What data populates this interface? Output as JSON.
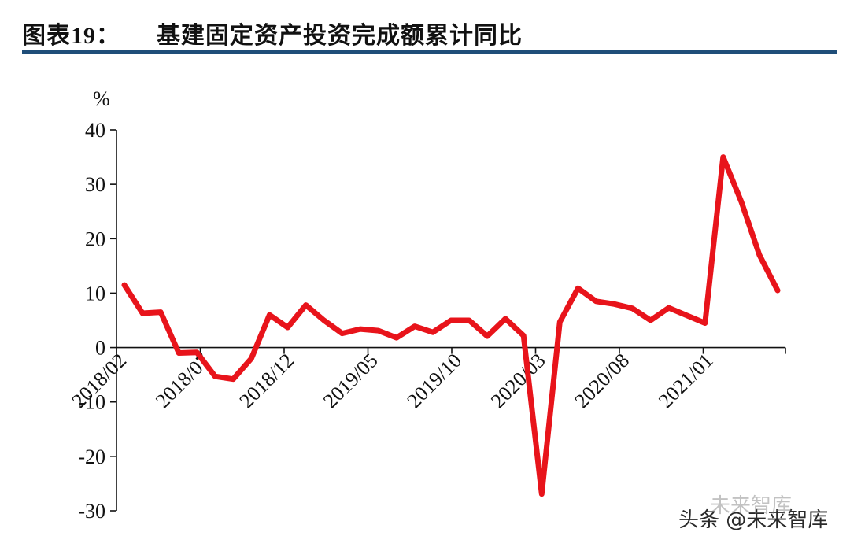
{
  "header": {
    "figure_label": "图表19：",
    "title": "基建固定资产投资完成额累计同比"
  },
  "colors": {
    "series": "#e8141b",
    "rule": "#1f4e79",
    "axis": "#111111"
  },
  "watermark": {
    "text": "头条 @未来智库",
    "overlay": "未来智库"
  },
  "chart_data": {
    "type": "line",
    "unit": "%",
    "ylim": [
      -30,
      40
    ],
    "yticks": [
      -30,
      -20,
      -10,
      0,
      10,
      20,
      30,
      40
    ],
    "grid": false,
    "legend": "none",
    "x_tick_labels": [
      "2018/02",
      "2018/07",
      "2018/12",
      "2019/05",
      "2019/10",
      "2020/03",
      "2020/08",
      "2021/01"
    ],
    "x": [
      "2018/02",
      "2018/03",
      "2018/04",
      "2018/05",
      "2018/06",
      "2018/07",
      "2018/08",
      "2018/09",
      "2018/10",
      "2018/11",
      "2018/12",
      "2019/02",
      "2019/03",
      "2019/04",
      "2019/05",
      "2019/06",
      "2019/07",
      "2019/08",
      "2019/09",
      "2019/10",
      "2019/11",
      "2019/12",
      "2020/02",
      "2020/03",
      "2020/04",
      "2020/05",
      "2020/06",
      "2020/07",
      "2020/08",
      "2020/09",
      "2020/10",
      "2020/11",
      "2020/12",
      "2021/02",
      "2021/03",
      "2021/04",
      "2021/05"
    ],
    "series": [
      {
        "values": [
          11.5,
          6.3,
          6.5,
          -1.0,
          -0.9,
          -5.3,
          -5.8,
          -2.0,
          6.0,
          3.7,
          7.8,
          5.0,
          2.6,
          3.4,
          3.1,
          1.8,
          3.9,
          2.8,
          5.0,
          5.0,
          2.1,
          5.3,
          2.2,
          -26.9,
          4.7,
          10.9,
          8.5,
          8.0,
          7.2,
          5.0,
          7.3,
          5.9,
          4.5,
          35.0,
          26.8,
          17.0,
          10.5
        ]
      }
    ]
  }
}
